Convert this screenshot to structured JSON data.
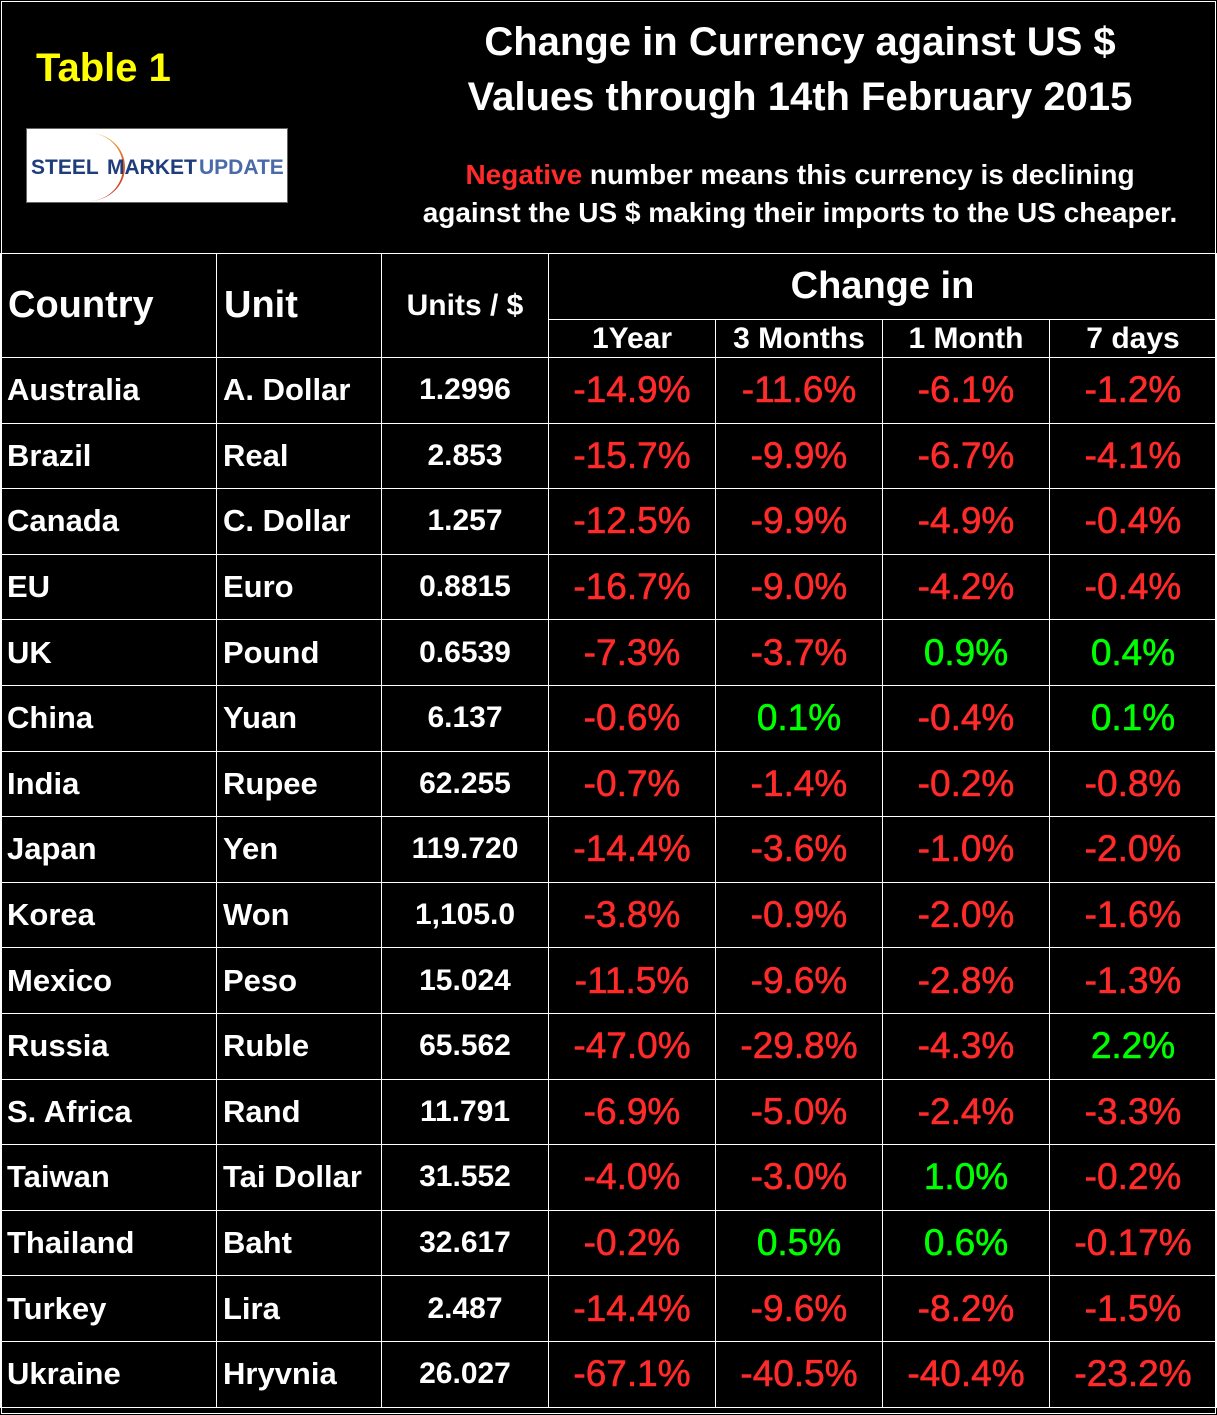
{
  "header": {
    "table_label": "Table 1",
    "logo_text": "STEEL MARKET UPDATE",
    "title_line1": "Change in Currency against US $",
    "title_line2": "Values through 14th February 2015",
    "note_highlight": "Negative",
    "note_rest_line1": " number means this currency is declining",
    "note_line2": "against the US $ making their imports to the US cheaper."
  },
  "colors": {
    "negative": "#ff2a2a",
    "positive": "#00ff00",
    "label": "#ffff00"
  },
  "table": {
    "col_country": "Country",
    "col_unit": "Unit",
    "col_units_per_dollar": "Units / $",
    "col_change_group": "Change in",
    "periods": [
      "1Year",
      "3 Months",
      "1 Month",
      "7 days"
    ],
    "rows": [
      {
        "country": "Australia",
        "unit": "A. Dollar",
        "value": "1.2996",
        "changes": [
          "-14.9%",
          "-11.6%",
          "-6.1%",
          "-1.2%"
        ]
      },
      {
        "country": "Brazil",
        "unit": "Real",
        "value": "2.853",
        "changes": [
          "-15.7%",
          "-9.9%",
          "-6.7%",
          "-4.1%"
        ]
      },
      {
        "country": "Canada",
        "unit": "C. Dollar",
        "value": "1.257",
        "changes": [
          "-12.5%",
          "-9.9%",
          "-4.9%",
          "-0.4%"
        ]
      },
      {
        "country": "EU",
        "unit": "Euro",
        "value": "0.8815",
        "changes": [
          "-16.7%",
          "-9.0%",
          "-4.2%",
          "-0.4%"
        ]
      },
      {
        "country": "UK",
        "unit": "Pound",
        "value": "0.6539",
        "changes": [
          "-7.3%",
          "-3.7%",
          "0.9%",
          "0.4%"
        ]
      },
      {
        "country": "China",
        "unit": "Yuan",
        "value": "6.137",
        "changes": [
          "-0.6%",
          "0.1%",
          "-0.4%",
          "0.1%"
        ]
      },
      {
        "country": "India",
        "unit": "Rupee",
        "value": "62.255",
        "changes": [
          "-0.7%",
          "-1.4%",
          "-0.2%",
          "-0.8%"
        ]
      },
      {
        "country": "Japan",
        "unit": "Yen",
        "value": "119.720",
        "changes": [
          "-14.4%",
          "-3.6%",
          "-1.0%",
          "-2.0%"
        ]
      },
      {
        "country": "Korea",
        "unit": "Won",
        "value": "1,105.0",
        "changes": [
          "-3.8%",
          "-0.9%",
          "-2.0%",
          "-1.6%"
        ]
      },
      {
        "country": "Mexico",
        "unit": "Peso",
        "value": "15.024",
        "changes": [
          "-11.5%",
          "-9.6%",
          "-2.8%",
          "-1.3%"
        ]
      },
      {
        "country": "Russia",
        "unit": "Ruble",
        "value": "65.562",
        "changes": [
          "-47.0%",
          "-29.8%",
          "-4.3%",
          "2.2%"
        ]
      },
      {
        "country": "S. Africa",
        "unit": "Rand",
        "value": "11.791",
        "changes": [
          "-6.9%",
          "-5.0%",
          "-2.4%",
          "-3.3%"
        ]
      },
      {
        "country": "Taiwan",
        "unit": "Tai Dollar",
        "value": "31.552",
        "changes": [
          "-4.0%",
          "-3.0%",
          "1.0%",
          "-0.2%"
        ]
      },
      {
        "country": "Thailand",
        "unit": "Baht",
        "value": "32.617",
        "changes": [
          "-0.2%",
          "0.5%",
          "0.6%",
          "-0.17%"
        ]
      },
      {
        "country": "Turkey",
        "unit": "Lira",
        "value": "2.487",
        "changes": [
          "-14.4%",
          "-9.6%",
          "-8.2%",
          "-1.5%"
        ]
      },
      {
        "country": "Ukraine",
        "unit": "Hryvnia",
        "value": "26.027",
        "changes": [
          "-67.1%",
          "-40.5%",
          "-40.4%",
          "-23.2%"
        ]
      }
    ]
  }
}
